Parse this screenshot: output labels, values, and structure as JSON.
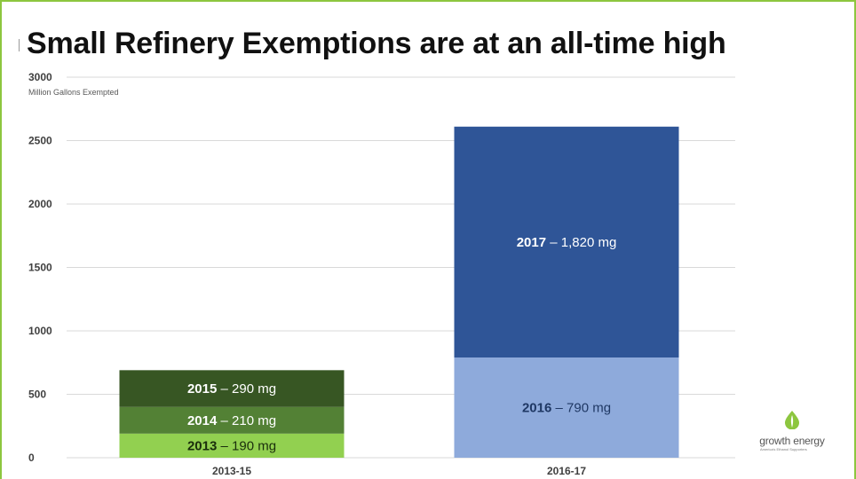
{
  "chart_data": {
    "type": "bar",
    "stacked": true,
    "title": "Small Refinery Exemptions are at an all-time high",
    "ylabel": "Million Gallons Exempted",
    "ylim": [
      0,
      3000
    ],
    "yticks": [
      "0",
      "500",
      "1000",
      "1500",
      "2000",
      "2500",
      "3000"
    ],
    "grid": true,
    "categories": [
      "2013-15",
      "2016-17"
    ],
    "groups": [
      {
        "category": "2013-15",
        "segments": [
          {
            "year": "2013",
            "label_rest": " – 190 mg",
            "value": 190,
            "color": "#92d050",
            "text_color": "#1a2e0c"
          },
          {
            "year": "2014",
            "label_rest": " – 210 mg",
            "value": 210,
            "color": "#538135",
            "text_color": "#ffffff"
          },
          {
            "year": "2015",
            "label_rest": " – 290 mg",
            "value": 290,
            "color": "#375623",
            "text_color": "#ffffff"
          }
        ]
      },
      {
        "category": "2016-17",
        "segments": [
          {
            "year": "2016",
            "label_rest": " – 790 mg",
            "value": 790,
            "color": "#8eaadb",
            "text_color": "#1f3864"
          },
          {
            "year": "2017",
            "label_rest": " – 1,820 mg",
            "value": 1820,
            "color": "#2f5597",
            "text_color": "#ffffff"
          }
        ]
      }
    ]
  },
  "logo": {
    "name": "growth energy",
    "tagline": "America's Ethanol Supporters",
    "icon": "water-drop-leaf-icon",
    "color": "#8dc63f"
  }
}
